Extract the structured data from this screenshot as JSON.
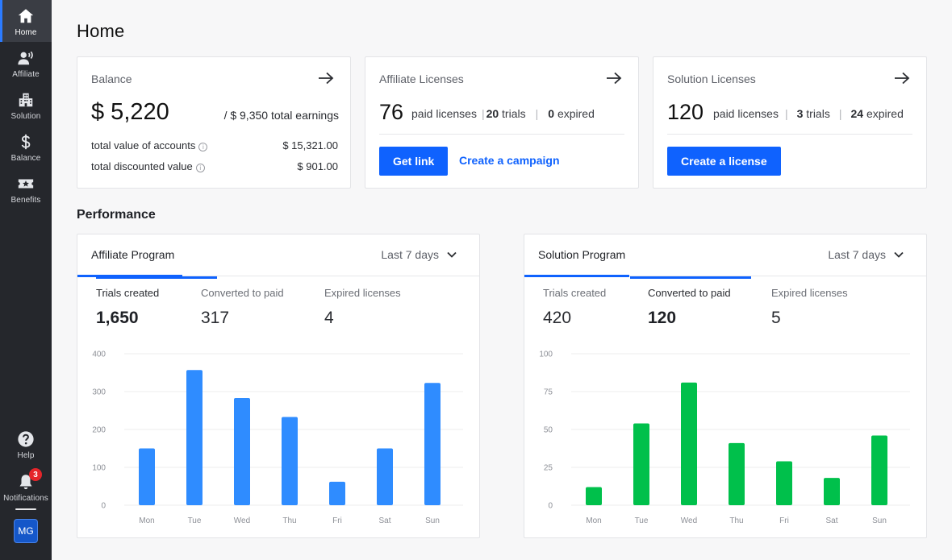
{
  "sidebar": {
    "items": [
      {
        "label": "Home",
        "icon": "home-icon",
        "active": true
      },
      {
        "label": "Affiliate",
        "icon": "affiliate-icon"
      },
      {
        "label": "Solution",
        "icon": "building-icon"
      },
      {
        "label": "Balance",
        "icon": "dollar-icon"
      },
      {
        "label": "Benefits",
        "icon": "ticket-star-icon"
      }
    ],
    "help_label": "Help",
    "notifications_label": "Notifications",
    "notifications_count": "3",
    "avatar_initials": "MG"
  },
  "page": {
    "title": "Home",
    "performance_title": "Performance"
  },
  "balance_card": {
    "title": "Balance",
    "amount": "$ 5,220",
    "total_earnings": "/ $ 9,350 total earnings",
    "rows": [
      {
        "label": "total value of accounts",
        "value": "$ 15,321.00"
      },
      {
        "label": "total discounted value",
        "value": "$ 901.00"
      }
    ]
  },
  "affiliate_card": {
    "title": "Affiliate Licenses",
    "paid_count": "76",
    "paid_label": "paid licenses",
    "trials_count": "20",
    "trials_label": "trials",
    "expired_count": "0",
    "expired_label": "expired",
    "primary_button": "Get link",
    "link": "Create a campaign"
  },
  "solution_card": {
    "title": "Solution Licenses",
    "paid_count": "120",
    "paid_label": "paid licenses",
    "trials_count": "3",
    "trials_label": "trials",
    "expired_count": "24",
    "expired_label": "expired",
    "primary_button": "Create a license"
  },
  "affiliate_panel": {
    "tab": "Affiliate Program",
    "period": "Last 7 days",
    "metrics": [
      {
        "label": "Trials created",
        "value": "1,650",
        "selected": true
      },
      {
        "label": "Converted to paid",
        "value": "317"
      },
      {
        "label": "Expired licenses",
        "value": "4"
      }
    ]
  },
  "solution_panel": {
    "tab": "Solution Program",
    "period": "Last 7 days",
    "metrics": [
      {
        "label": "Trials created",
        "value": "420"
      },
      {
        "label": "Converted to paid",
        "value": "120",
        "selected": true
      },
      {
        "label": "Expired licenses",
        "value": "5"
      }
    ]
  },
  "chart_data": [
    {
      "type": "bar",
      "categories": [
        "Mon",
        "Tue",
        "Wed",
        "Thu",
        "Fri",
        "Sat",
        "Sun"
      ],
      "values": [
        150,
        357,
        283,
        233,
        62,
        150,
        323
      ],
      "yticks": [
        0,
        100,
        200,
        300,
        400
      ],
      "ylim": [
        0,
        400
      ],
      "color": "#2f8cff",
      "grid": true
    },
    {
      "type": "bar",
      "categories": [
        "Mon",
        "Tue",
        "Wed",
        "Thu",
        "Fri",
        "Sat",
        "Sun"
      ],
      "values": [
        12,
        54,
        81,
        41,
        29,
        18,
        46
      ],
      "yticks": [
        0,
        25,
        50,
        75,
        100
      ],
      "ylim": [
        0,
        100
      ],
      "color": "#00c04b",
      "grid": true
    }
  ]
}
